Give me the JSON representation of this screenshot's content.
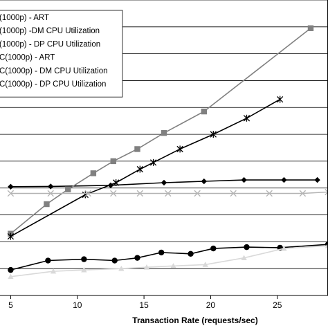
{
  "chart_data": {
    "type": "line",
    "title": "",
    "xlabel": "Transaction Rate (requests/sec)",
    "ylabel": "",
    "xlim": [
      4.2,
      28.8
    ],
    "ylim": [
      0,
      11
    ],
    "xticks": [
      5,
      10,
      15,
      20,
      25
    ],
    "ygrid": [
      1,
      2,
      3,
      4,
      5,
      6,
      7,
      8,
      9,
      10,
      11
    ],
    "grid": "horizontal",
    "legend_position": "top-left",
    "series": [
      {
        "name": "(1000p) - ART",
        "color": "#000000",
        "marker": "diamond",
        "x": [
          5,
          8,
          12.5,
          16.5,
          19.5,
          22.5,
          25.5,
          28
        ],
        "y": [
          4.05,
          4.06,
          4.1,
          4.2,
          4.25,
          4.3,
          4.3,
          4.3
        ]
      },
      {
        "name": "(1000p) -DM CPU Utilization",
        "color": "#808080",
        "marker": "square",
        "x": [
          5,
          7.7,
          9.3,
          11.2,
          12.7,
          14.5,
          16.5,
          19.5,
          27.5
        ],
        "y": [
          2.3,
          3.4,
          3.95,
          4.55,
          5.0,
          5.45,
          6.05,
          6.85,
          9.95
        ]
      },
      {
        "name": "(1000p) - DP CPU Utilization",
        "color": "#000000",
        "marker": "star",
        "x": [
          5,
          10.6,
          12.9,
          14.7,
          15.7,
          17.7,
          20.2,
          22.7,
          25.2
        ],
        "y": [
          2.2,
          3.75,
          4.2,
          4.7,
          4.95,
          5.45,
          6.0,
          6.6,
          7.3
        ]
      },
      {
        "name": "(1000p) - ART",
        "color": "#b3b3b3",
        "marker": "x",
        "x": [
          5,
          8,
          10.8,
          12.7,
          14.7,
          16.8,
          19,
          21.7,
          24.4,
          26.9,
          28.8
        ],
        "y": [
          3.8,
          3.8,
          3.8,
          3.8,
          3.8,
          3.8,
          3.8,
          3.8,
          3.8,
          3.8,
          3.85
        ]
      },
      {
        "name": "(1000p) - DM CPU Utilization",
        "color": "#000000",
        "marker": "circle",
        "x": [
          5,
          7.8,
          10.5,
          12.8,
          14.5,
          16.3,
          18.5,
          20.2,
          22.7,
          25.2,
          28.8
        ],
        "y": [
          0.95,
          1.3,
          1.35,
          1.3,
          1.4,
          1.6,
          1.55,
          1.75,
          1.8,
          1.78,
          1.9
        ]
      },
      {
        "name": "(1000p) - DP CPU Utilization",
        "color": "#d9d9d9",
        "marker": "triangle",
        "x": [
          5,
          8.2,
          10.5,
          13.3,
          15.2,
          17.2,
          19.6,
          22.5,
          25.5,
          28.8
        ],
        "y": [
          0.7,
          0.9,
          0.95,
          1.0,
          1.05,
          1.1,
          1.15,
          1.4,
          1.75,
          1.85
        ]
      }
    ],
    "legend_entries": [
      "(1000p) - ART",
      "(1000p) -DM CPU Utilization",
      "(1000p) - DP CPU Utilization",
      "C(1000p) - ART",
      "C(1000p) - DM CPU Utilization",
      "C(1000p) - DP CPU Utilization"
    ]
  }
}
